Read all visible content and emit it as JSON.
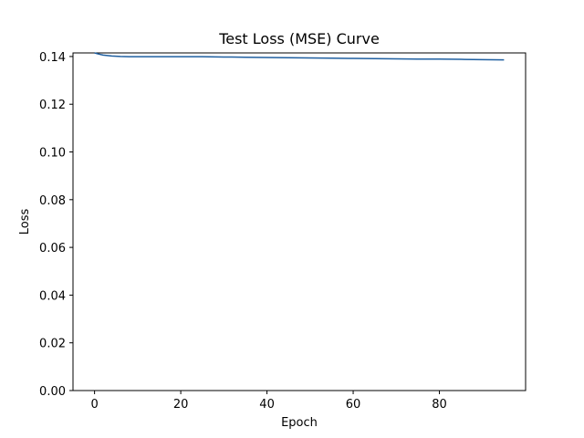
{
  "chart_data": {
    "type": "line",
    "title": "Test Loss (MSE) Curve",
    "xlabel": "Epoch",
    "ylabel": "Loss",
    "xlim": [
      -5,
      100
    ],
    "ylim": [
      0.0,
      0.1415
    ],
    "x_ticks": [
      0,
      20,
      40,
      60,
      80
    ],
    "x_tick_labels": [
      "0",
      "20",
      "40",
      "60",
      "80"
    ],
    "y_ticks": [
      0.0,
      0.02,
      0.04,
      0.06,
      0.08,
      0.1,
      0.12,
      0.14
    ],
    "y_tick_labels": [
      "0.00",
      "0.02",
      "0.04",
      "0.06",
      "0.08",
      "0.10",
      "0.12",
      "0.14"
    ],
    "grid": false,
    "legend": "none",
    "line_color": "#1f5fa0",
    "series": [
      {
        "x": [
          0,
          1,
          2,
          3,
          4,
          5,
          6,
          8,
          10,
          15,
          20,
          25,
          30,
          35,
          40,
          45,
          50,
          55,
          60,
          65,
          70,
          75,
          80,
          85,
          90,
          95
        ],
        "values": [
          0.1415,
          0.141,
          0.1406,
          0.1404,
          0.1402,
          0.1401,
          0.14,
          0.1399,
          0.1399,
          0.1399,
          0.1399,
          0.1399,
          0.1398,
          0.1397,
          0.1396,
          0.1395,
          0.1394,
          0.1393,
          0.1392,
          0.1391,
          0.139,
          0.1389,
          0.1389,
          0.1388,
          0.1387,
          0.1386
        ]
      }
    ]
  }
}
